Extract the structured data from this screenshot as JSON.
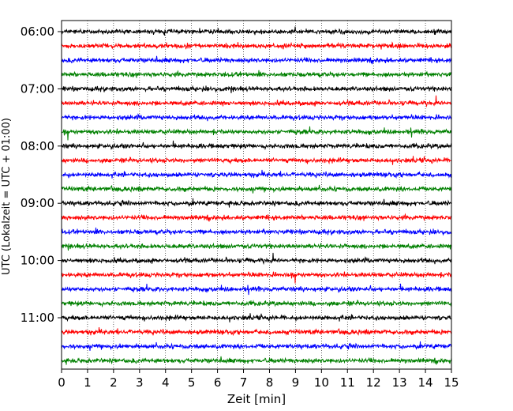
{
  "chart_data": {
    "type": "line",
    "subtype": "helicorder",
    "xlabel": "Zeit  [min]",
    "ylabel": "UTC (Lokalzeit = UTC + 01:00)",
    "xlim": [
      0,
      15
    ],
    "x_ticks": [
      "0",
      "1",
      "2",
      "3",
      "4",
      "5",
      "6",
      "7",
      "8",
      "9",
      "10",
      "11",
      "12",
      "13",
      "14",
      "15"
    ],
    "y_tick_labels": [
      "06:00",
      "07:00",
      "08:00",
      "09:00",
      "10:00",
      "11:00"
    ],
    "minutes_per_trace": 15,
    "traces_per_hour": 4,
    "trace_count": 24,
    "trace_colors": [
      "#000000",
      "#ff0000",
      "#0000ff",
      "#008000"
    ],
    "grid": {
      "x": "dotted vertical",
      "y": "off"
    },
    "frame_color": "#000000"
  }
}
